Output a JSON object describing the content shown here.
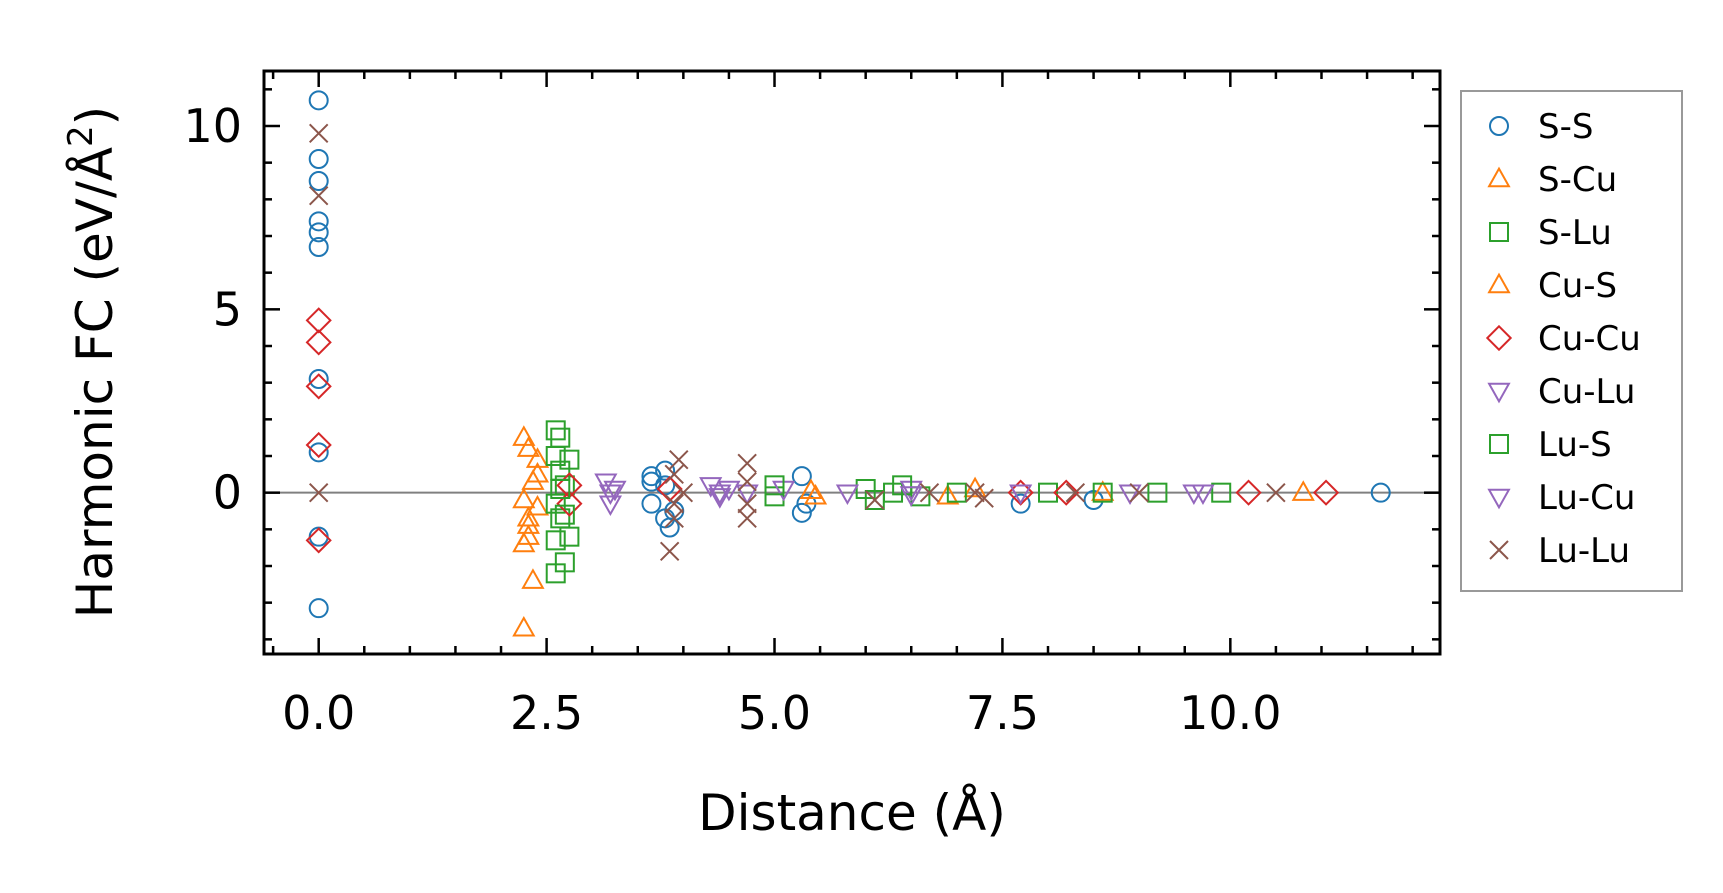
{
  "chart_data": {
    "type": "scatter",
    "title": "",
    "xlabel": "Distance (Å)",
    "ylabel": "Harmonic FC (eV/Å²)",
    "ylabel_main": "Harmonic FC (eV/Å",
    "ylabel_sup": "2",
    "ylabel_close": ")",
    "xlim": [
      -0.6,
      12.3
    ],
    "ylim": [
      -4.4,
      11.5
    ],
    "xticks": [
      0.0,
      2.5,
      5.0,
      7.5,
      10.0
    ],
    "xtick_labels": [
      "0.0",
      "2.5",
      "5.0",
      "7.5",
      "10.0"
    ],
    "yticks": [
      0,
      5,
      10
    ],
    "ytick_labels": [
      "0",
      "5",
      "10"
    ],
    "zero_line": true,
    "legend_position": "outside-right",
    "series": [
      {
        "name": "S-S",
        "marker": "circle",
        "color": "#1f77b4",
        "points": [
          [
            0,
            10.7
          ],
          [
            0,
            9.1
          ],
          [
            0,
            8.5
          ],
          [
            0,
            7.4
          ],
          [
            0,
            7.1
          ],
          [
            0,
            6.7
          ],
          [
            0,
            3.1
          ],
          [
            0,
            1.1
          ],
          [
            0,
            -1.2
          ],
          [
            0,
            -3.15
          ],
          [
            3.65,
            0.45
          ],
          [
            3.65,
            0.3
          ],
          [
            3.65,
            -0.3
          ],
          [
            3.8,
            0.6
          ],
          [
            3.8,
            0.2
          ],
          [
            3.8,
            -0.7
          ],
          [
            3.85,
            -0.95
          ],
          [
            3.9,
            -0.5
          ],
          [
            5.3,
            0.45
          ],
          [
            5.3,
            -0.55
          ],
          [
            5.35,
            -0.3
          ],
          [
            7.7,
            -0.3
          ],
          [
            8.5,
            -0.2
          ],
          [
            11.65,
            0.0
          ]
        ]
      },
      {
        "name": "S-Cu",
        "marker": "triangle-up",
        "color": "#ff7f0e",
        "points": [
          [
            2.25,
            1.5
          ],
          [
            2.3,
            1.2
          ],
          [
            2.25,
            -0.2
          ],
          [
            2.3,
            -0.7
          ],
          [
            2.25,
            -1.4
          ],
          [
            2.3,
            -1.2
          ],
          [
            2.35,
            -2.4
          ],
          [
            2.25,
            -3.7
          ],
          [
            2.4,
            0.9
          ],
          [
            2.4,
            0.5
          ],
          [
            2.4,
            -0.4
          ],
          [
            5.45,
            -0.1
          ],
          [
            6.9,
            -0.1
          ],
          [
            7.2,
            0.1
          ],
          [
            10.8,
            0.0
          ]
        ]
      },
      {
        "name": "S-Lu",
        "marker": "square",
        "color": "#2ca02c",
        "points": [
          [
            2.6,
            1.7
          ],
          [
            2.65,
            1.5
          ],
          [
            2.6,
            1.0
          ],
          [
            2.65,
            0.6
          ],
          [
            2.7,
            0.2
          ],
          [
            2.6,
            -0.3
          ],
          [
            2.65,
            -0.7
          ],
          [
            2.6,
            -1.3
          ],
          [
            2.7,
            -1.9
          ],
          [
            2.6,
            -2.2
          ],
          [
            2.75,
            -1.2
          ],
          [
            2.75,
            0.9
          ],
          [
            5.0,
            -0.1
          ],
          [
            6.0,
            0.1
          ],
          [
            6.3,
            0.0
          ],
          [
            6.6,
            -0.1
          ],
          [
            8.0,
            0.0
          ],
          [
            9.2,
            0.0
          ],
          [
            9.9,
            0.0
          ]
        ]
      },
      {
        "name": "Cu-S",
        "marker": "triangle-up",
        "color": "#ff7f0e",
        "points": [
          [
            2.35,
            0.3
          ],
          [
            2.3,
            -0.9
          ],
          [
            5.4,
            0.05
          ],
          [
            8.6,
            0.0
          ]
        ]
      },
      {
        "name": "Cu-Cu",
        "marker": "diamond",
        "color": "#d62728",
        "points": [
          [
            0,
            4.7
          ],
          [
            0,
            4.1
          ],
          [
            0,
            2.9
          ],
          [
            0,
            1.3
          ],
          [
            0,
            -1.3
          ],
          [
            2.75,
            0.2
          ],
          [
            2.75,
            -0.3
          ],
          [
            3.85,
            0.1
          ],
          [
            7.7,
            0.0
          ],
          [
            8.2,
            0.0
          ],
          [
            10.2,
            0.0
          ],
          [
            11.05,
            0.0
          ]
        ]
      },
      {
        "name": "Cu-Lu",
        "marker": "triangle-down",
        "color": "#9467bd",
        "points": [
          [
            3.15,
            0.3
          ],
          [
            3.2,
            -0.3
          ],
          [
            3.2,
            0.0
          ],
          [
            4.3,
            0.2
          ],
          [
            4.4,
            -0.1
          ],
          [
            4.5,
            0.1
          ],
          [
            4.7,
            0.0
          ],
          [
            5.1,
            0.1
          ],
          [
            5.8,
            0.0
          ],
          [
            6.5,
            0.1
          ],
          [
            7.7,
            0.0
          ],
          [
            8.9,
            0.0
          ],
          [
            9.6,
            0.0
          ]
        ]
      },
      {
        "name": "Lu-S",
        "marker": "square",
        "color": "#2ca02c",
        "points": [
          [
            2.65,
            0.1
          ],
          [
            2.7,
            -0.6
          ],
          [
            5.0,
            0.2
          ],
          [
            6.1,
            -0.2
          ],
          [
            6.4,
            0.2
          ],
          [
            7.0,
            0.0
          ],
          [
            8.6,
            0.0
          ]
        ]
      },
      {
        "name": "Lu-Cu",
        "marker": "triangle-down",
        "color": "#9467bd",
        "points": [
          [
            3.25,
            0.1
          ],
          [
            4.4,
            0.0
          ],
          [
            6.5,
            -0.05
          ],
          [
            9.7,
            0.0
          ]
        ]
      },
      {
        "name": "Lu-Lu",
        "marker": "x",
        "color": "#8c564b",
        "points": [
          [
            0,
            9.8
          ],
          [
            0,
            8.1
          ],
          [
            0,
            0.0
          ],
          [
            3.95,
            0.9
          ],
          [
            3.9,
            0.5
          ],
          [
            3.9,
            -0.3
          ],
          [
            3.9,
            -0.7
          ],
          [
            3.85,
            -1.6
          ],
          [
            4.0,
            0.0
          ],
          [
            4.7,
            0.8
          ],
          [
            4.7,
            0.3
          ],
          [
            4.7,
            -0.3
          ],
          [
            4.7,
            -0.7
          ],
          [
            6.1,
            -0.2
          ],
          [
            6.7,
            0.0
          ],
          [
            7.2,
            0.0
          ],
          [
            7.3,
            -0.15
          ],
          [
            8.3,
            0.0
          ],
          [
            9.0,
            0.0
          ],
          [
            10.5,
            0.0
          ]
        ]
      }
    ]
  }
}
